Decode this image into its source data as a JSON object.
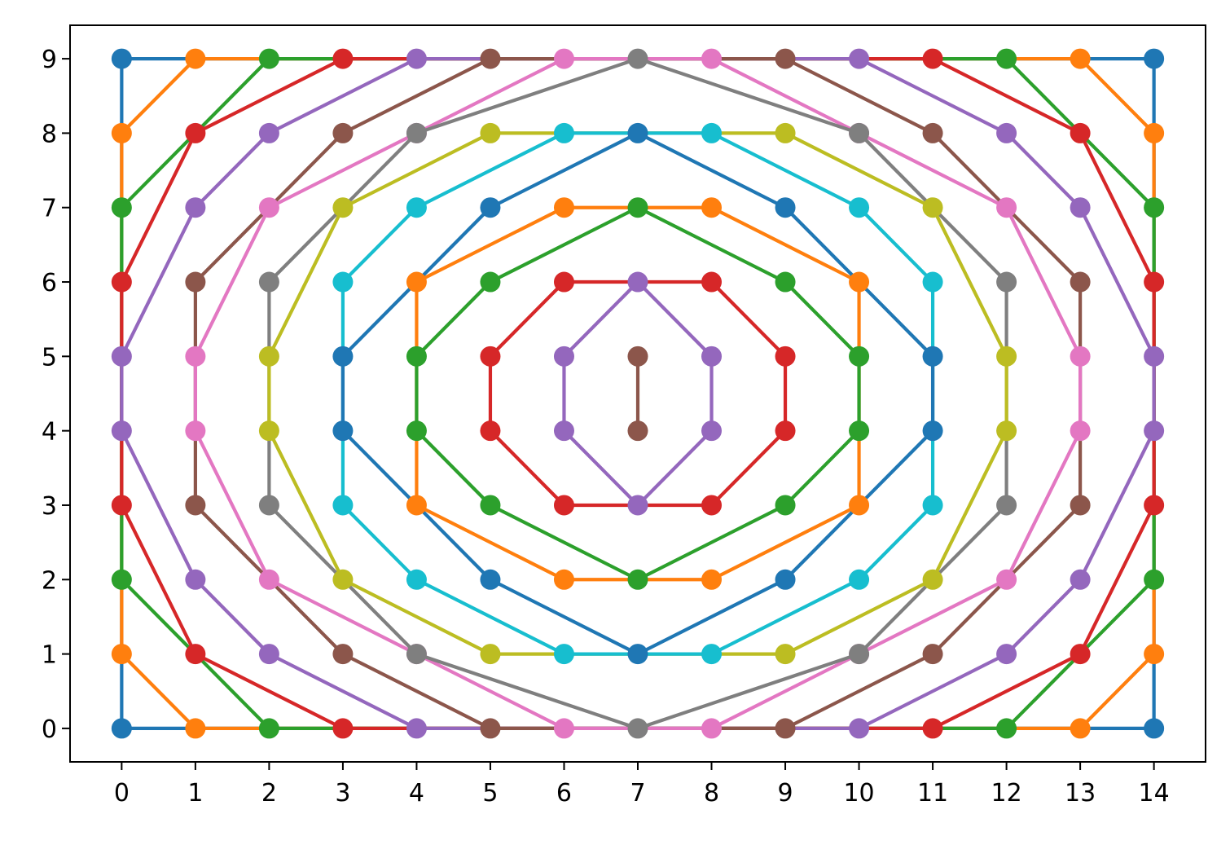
{
  "chart_data": {
    "type": "line",
    "title": "",
    "xlabel": "",
    "ylabel": "",
    "xlim": [
      -0.7,
      14.7
    ],
    "ylim": [
      -0.45,
      9.45
    ],
    "xticks": [
      0,
      1,
      2,
      3,
      4,
      5,
      6,
      7,
      8,
      9,
      10,
      11,
      12,
      13,
      14
    ],
    "yticks": [
      0,
      1,
      2,
      3,
      4,
      5,
      6,
      7,
      8,
      9
    ],
    "grid": false,
    "legend": "none",
    "series": [
      {
        "color": "#1f77b4",
        "points": [
          [
            0,
            0
          ],
          [
            0,
            9
          ],
          [
            14,
            9
          ],
          [
            14,
            0
          ],
          [
            0,
            0
          ]
        ]
      },
      {
        "color": "#ff7f0e",
        "points": [
          [
            0,
            1
          ],
          [
            0,
            8
          ],
          [
            1,
            9
          ],
          [
            13,
            9
          ],
          [
            14,
            8
          ],
          [
            14,
            1
          ],
          [
            13,
            0
          ],
          [
            1,
            0
          ],
          [
            0,
            1
          ]
        ]
      },
      {
        "color": "#2ca02c",
        "points": [
          [
            0,
            2
          ],
          [
            0,
            7
          ],
          [
            2,
            9
          ],
          [
            12,
            9
          ],
          [
            14,
            7
          ],
          [
            14,
            2
          ],
          [
            12,
            0
          ],
          [
            2,
            0
          ],
          [
            0,
            2
          ]
        ]
      },
      {
        "color": "#d62728",
        "points": [
          [
            0,
            3
          ],
          [
            0,
            6
          ],
          [
            1,
            8
          ],
          [
            3,
            9
          ],
          [
            11,
            9
          ],
          [
            13,
            8
          ],
          [
            14,
            6
          ],
          [
            14,
            3
          ],
          [
            13,
            1
          ],
          [
            11,
            0
          ],
          [
            3,
            0
          ],
          [
            1,
            1
          ],
          [
            0,
            3
          ]
        ]
      },
      {
        "color": "#9467bd",
        "points": [
          [
            0,
            4
          ],
          [
            0,
            5
          ],
          [
            1,
            7
          ],
          [
            2,
            8
          ],
          [
            4,
            9
          ],
          [
            10,
            9
          ],
          [
            12,
            8
          ],
          [
            13,
            7
          ],
          [
            14,
            5
          ],
          [
            14,
            4
          ],
          [
            13,
            2
          ],
          [
            12,
            1
          ],
          [
            10,
            0
          ],
          [
            4,
            0
          ],
          [
            2,
            1
          ],
          [
            1,
            2
          ],
          [
            0,
            4
          ]
        ]
      },
      {
        "color": "#8c564b",
        "points": [
          [
            1,
            3
          ],
          [
            1,
            6
          ],
          [
            3,
            8
          ],
          [
            5,
            9
          ],
          [
            9,
            9
          ],
          [
            11,
            8
          ],
          [
            13,
            6
          ],
          [
            13,
            3
          ],
          [
            11,
            1
          ],
          [
            9,
            0
          ],
          [
            5,
            0
          ],
          [
            3,
            1
          ],
          [
            1,
            3
          ]
        ]
      },
      {
        "color": "#e377c2",
        "points": [
          [
            1,
            4
          ],
          [
            1,
            5
          ],
          [
            2,
            7
          ],
          [
            4,
            8
          ],
          [
            6,
            9
          ],
          [
            8,
            9
          ],
          [
            10,
            8
          ],
          [
            12,
            7
          ],
          [
            13,
            5
          ],
          [
            13,
            4
          ],
          [
            12,
            2
          ],
          [
            10,
            1
          ],
          [
            8,
            0
          ],
          [
            6,
            0
          ],
          [
            4,
            1
          ],
          [
            2,
            2
          ],
          [
            1,
            4
          ]
        ]
      },
      {
        "color": "#7f7f7f",
        "points": [
          [
            2,
            3
          ],
          [
            2,
            6
          ],
          [
            4,
            8
          ],
          [
            7,
            9
          ],
          [
            10,
            8
          ],
          [
            12,
            6
          ],
          [
            12,
            3
          ],
          [
            10,
            1
          ],
          [
            7,
            0
          ],
          [
            4,
            1
          ],
          [
            2,
            3
          ]
        ]
      },
      {
        "color": "#bcbd22",
        "points": [
          [
            2,
            4
          ],
          [
            2,
            5
          ],
          [
            3,
            7
          ],
          [
            5,
            8
          ],
          [
            9,
            8
          ],
          [
            11,
            7
          ],
          [
            12,
            5
          ],
          [
            12,
            4
          ],
          [
            11,
            2
          ],
          [
            9,
            1
          ],
          [
            5,
            1
          ],
          [
            3,
            2
          ],
          [
            2,
            4
          ]
        ]
      },
      {
        "color": "#17becf",
        "points": [
          [
            3,
            3
          ],
          [
            3,
            6
          ],
          [
            4,
            7
          ],
          [
            6,
            8
          ],
          [
            8,
            8
          ],
          [
            10,
            7
          ],
          [
            11,
            6
          ],
          [
            11,
            3
          ],
          [
            10,
            2
          ],
          [
            8,
            1
          ],
          [
            6,
            1
          ],
          [
            4,
            2
          ],
          [
            3,
            3
          ]
        ]
      },
      {
        "color": "#1f77b4",
        "points": [
          [
            3,
            4
          ],
          [
            3,
            5
          ],
          [
            5,
            7
          ],
          [
            7,
            8
          ],
          [
            9,
            7
          ],
          [
            11,
            5
          ],
          [
            11,
            4
          ],
          [
            9,
            2
          ],
          [
            7,
            1
          ],
          [
            5,
            2
          ],
          [
            3,
            4
          ]
        ]
      },
      {
        "color": "#ff7f0e",
        "points": [
          [
            4,
            3
          ],
          [
            4,
            6
          ],
          [
            6,
            7
          ],
          [
            8,
            7
          ],
          [
            10,
            6
          ],
          [
            10,
            3
          ],
          [
            8,
            2
          ],
          [
            6,
            2
          ],
          [
            4,
            3
          ]
        ]
      },
      {
        "color": "#2ca02c",
        "points": [
          [
            4,
            4
          ],
          [
            4,
            5
          ],
          [
            5,
            6
          ],
          [
            7,
            7
          ],
          [
            9,
            6
          ],
          [
            10,
            5
          ],
          [
            10,
            4
          ],
          [
            9,
            3
          ],
          [
            7,
            2
          ],
          [
            5,
            3
          ],
          [
            4,
            4
          ]
        ]
      },
      {
        "color": "#d62728",
        "points": [
          [
            5,
            4
          ],
          [
            5,
            5
          ],
          [
            6,
            6
          ],
          [
            8,
            6
          ],
          [
            9,
            5
          ],
          [
            9,
            4
          ],
          [
            8,
            3
          ],
          [
            6,
            3
          ],
          [
            5,
            4
          ]
        ]
      },
      {
        "color": "#9467bd",
        "points": [
          [
            6,
            4
          ],
          [
            6,
            5
          ],
          [
            7,
            6
          ],
          [
            8,
            5
          ],
          [
            8,
            4
          ],
          [
            7,
            3
          ],
          [
            6,
            4
          ]
        ]
      },
      {
        "color": "#8c564b",
        "points": [
          [
            7,
            4
          ],
          [
            7,
            5
          ]
        ]
      }
    ]
  }
}
